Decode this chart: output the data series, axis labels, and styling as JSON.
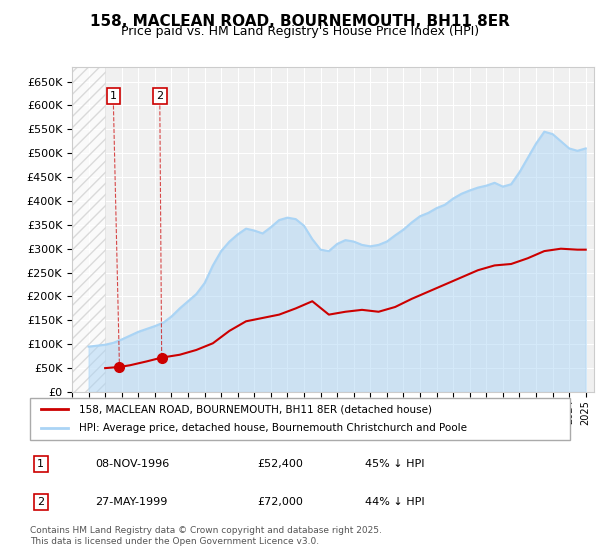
{
  "title": "158, MACLEAN ROAD, BOURNEMOUTH, BH11 8ER",
  "subtitle": "Price paid vs. HM Land Registry's House Price Index (HPI)",
  "background_color": "#ffffff",
  "plot_bg_color": "#f0f0f0",
  "grid_color": "#ffffff",
  "hpi_color": "#aad4f5",
  "price_color": "#cc0000",
  "transaction_color": "#cc0000",
  "ylim": [
    0,
    680000
  ],
  "yticks": [
    0,
    50000,
    100000,
    150000,
    200000,
    250000,
    300000,
    350000,
    400000,
    450000,
    500000,
    550000,
    600000,
    650000
  ],
  "xlim_start": 1994.0,
  "xlim_end": 2025.5,
  "transactions": [
    {
      "date": 1996.86,
      "price": 52400,
      "label": "1"
    },
    {
      "date": 1999.41,
      "price": 72000,
      "label": "2"
    }
  ],
  "legend_entries": [
    {
      "label": "158, MACLEAN ROAD, BOURNEMOUTH, BH11 8ER (detached house)",
      "color": "#cc0000"
    },
    {
      "label": "HPI: Average price, detached house, Bournemouth Christchurch and Poole",
      "color": "#aad4f5"
    }
  ],
  "table_rows": [
    {
      "num": "1",
      "date": "08-NOV-1996",
      "price": "£52,400",
      "hpi": "45% ↓ HPI"
    },
    {
      "num": "2",
      "date": "27-MAY-1999",
      "price": "£72,000",
      "hpi": "44% ↓ HPI"
    }
  ],
  "footer": "Contains HM Land Registry data © Crown copyright and database right 2025.\nThis data is licensed under the Open Government Licence v3.0.",
  "hpi_data_x": [
    1995.0,
    1995.5,
    1996.0,
    1996.5,
    1997.0,
    1997.5,
    1998.0,
    1998.5,
    1999.0,
    1999.5,
    2000.0,
    2000.5,
    2001.0,
    2001.5,
    2002.0,
    2002.5,
    2003.0,
    2003.5,
    2004.0,
    2004.5,
    2005.0,
    2005.5,
    2006.0,
    2006.5,
    2007.0,
    2007.5,
    2008.0,
    2008.5,
    2009.0,
    2009.5,
    2010.0,
    2010.5,
    2011.0,
    2011.5,
    2012.0,
    2012.5,
    2013.0,
    2013.5,
    2014.0,
    2014.5,
    2015.0,
    2015.5,
    2016.0,
    2016.5,
    2017.0,
    2017.5,
    2018.0,
    2018.5,
    2019.0,
    2019.5,
    2020.0,
    2020.5,
    2021.0,
    2021.5,
    2022.0,
    2022.5,
    2023.0,
    2023.5,
    2024.0,
    2024.5,
    2025.0
  ],
  "hpi_data_y": [
    95000,
    97000,
    99000,
    103000,
    110000,
    118000,
    126000,
    132000,
    138000,
    145000,
    158000,
    175000,
    190000,
    205000,
    228000,
    265000,
    295000,
    315000,
    330000,
    342000,
    338000,
    332000,
    345000,
    360000,
    365000,
    362000,
    348000,
    320000,
    298000,
    295000,
    310000,
    318000,
    315000,
    308000,
    305000,
    308000,
    315000,
    328000,
    340000,
    355000,
    368000,
    375000,
    385000,
    392000,
    405000,
    415000,
    422000,
    428000,
    432000,
    438000,
    430000,
    435000,
    460000,
    490000,
    520000,
    545000,
    540000,
    525000,
    510000,
    505000,
    510000
  ],
  "price_line_x": [
    1996.0,
    1996.86,
    1997.5,
    1998.5,
    1999.41,
    2000.5,
    2001.5,
    2002.5,
    2003.5,
    2004.5,
    2005.5,
    2006.5,
    2007.5,
    2008.5,
    2009.5,
    2010.5,
    2011.5,
    2012.5,
    2013.5,
    2014.5,
    2015.5,
    2016.5,
    2017.5,
    2018.5,
    2019.5,
    2020.5,
    2021.5,
    2022.5,
    2023.5,
    2024.5,
    2025.0
  ],
  "price_line_y": [
    50000,
    52400,
    56000,
    64000,
    72000,
    78000,
    88000,
    102000,
    128000,
    148000,
    155000,
    162000,
    175000,
    190000,
    162000,
    168000,
    172000,
    168000,
    178000,
    195000,
    210000,
    225000,
    240000,
    255000,
    265000,
    268000,
    280000,
    295000,
    300000,
    298000,
    298000
  ]
}
